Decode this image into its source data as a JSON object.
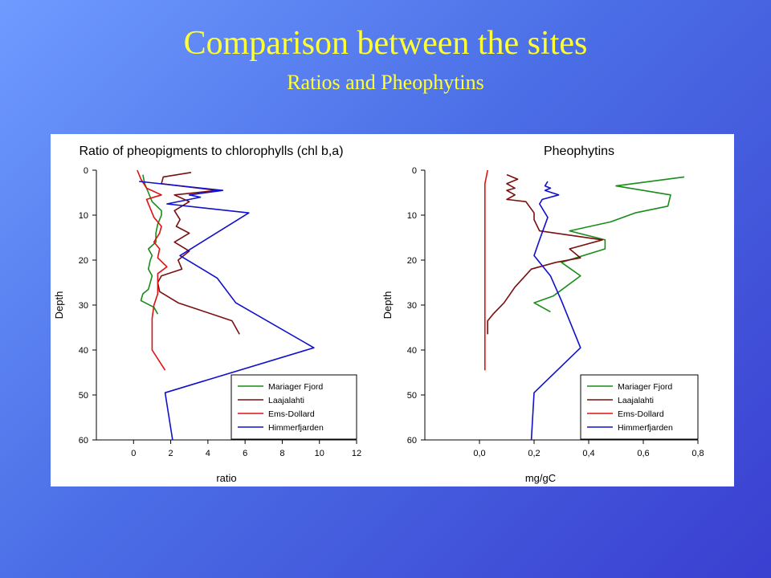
{
  "slide": {
    "title": "Comparison between the sites",
    "subtitle": "Ratios and Pheophytins"
  },
  "chart_data": [
    {
      "type": "line",
      "title": "Ratio of pheopigments to chlorophylls (chl b,a)",
      "xlabel": "ratio",
      "ylabel": "Depth",
      "xlim": [
        -2,
        12
      ],
      "ylim": [
        0,
        60
      ],
      "y_inverted": true,
      "xticks": [
        "0",
        "2",
        "4",
        "6",
        "8",
        "10",
        "12"
      ],
      "yticks": [
        "0",
        "10",
        "20",
        "30",
        "40",
        "50",
        "60"
      ],
      "legend_position": "bottom-right",
      "series": [
        {
          "name": "Mariager Fjord",
          "color": "#1a8c1a",
          "points": [
            [
              0.5,
              1
            ],
            [
              0.6,
              3
            ],
            [
              0.8,
              5
            ],
            [
              1,
              7
            ],
            [
              1.5,
              9
            ],
            [
              1.5,
              10
            ],
            [
              1.3,
              12
            ],
            [
              1.2,
              14
            ],
            [
              1.2,
              16
            ],
            [
              0.8,
              17.5
            ],
            [
              1,
              19
            ],
            [
              0.9,
              20
            ],
            [
              0.8,
              22
            ],
            [
              1,
              23.5
            ],
            [
              0.9,
              25
            ],
            [
              0.8,
              26.5
            ],
            [
              0.5,
              27.5
            ],
            [
              0.4,
              29
            ],
            [
              1.1,
              30.5
            ],
            [
              1.3,
              32
            ]
          ]
        },
        {
          "name": "Laajalahti",
          "color": "#7a0f0f",
          "points": [
            [
              3.1,
              0.5
            ],
            [
              1.6,
              1.5
            ],
            [
              1.5,
              3
            ],
            [
              4.5,
              4.5
            ],
            [
              2.2,
              5.5
            ],
            [
              3,
              7
            ],
            [
              2.2,
              9
            ],
            [
              2.5,
              11
            ],
            [
              2.3,
              12.5
            ],
            [
              3,
              14
            ],
            [
              2.2,
              16
            ],
            [
              3,
              18
            ],
            [
              2.4,
              20
            ],
            [
              2.6,
              22
            ],
            [
              1.5,
              23.5
            ],
            [
              1.3,
              25
            ],
            [
              1.4,
              27
            ],
            [
              2.4,
              29.5
            ],
            [
              5.3,
              33.5
            ],
            [
              5.7,
              36.5
            ]
          ]
        },
        {
          "name": "Ems-Dollard",
          "color": "#e01010",
          "points": [
            [
              0.2,
              0
            ],
            [
              0.4,
              2
            ],
            [
              0.7,
              4
            ],
            [
              1.5,
              5.5
            ],
            [
              0.7,
              6.5
            ],
            [
              0.9,
              8.5
            ],
            [
              1.1,
              10.5
            ],
            [
              1.5,
              12.5
            ],
            [
              1.4,
              14
            ],
            [
              1.1,
              16
            ],
            [
              1.4,
              17.5
            ],
            [
              1.3,
              19.5
            ],
            [
              1.8,
              21.5
            ],
            [
              1.3,
              23
            ],
            [
              1.3,
              24.5
            ],
            [
              1.3,
              27.5
            ],
            [
              1.1,
              30
            ],
            [
              1,
              33
            ],
            [
              1,
              36.5
            ],
            [
              1,
              40
            ],
            [
              1.7,
              44.5
            ]
          ]
        },
        {
          "name": "Himmerfjarden",
          "color": "#1010cc",
          "points": [
            [
              0.3,
              2.5
            ],
            [
              4.8,
              4.5
            ],
            [
              3,
              5.5
            ],
            [
              3.6,
              6
            ],
            [
              1.8,
              7.5
            ],
            [
              6.2,
              9.5
            ],
            [
              2.5,
              19
            ],
            [
              4.5,
              24
            ],
            [
              5.5,
              29.5
            ],
            [
              9.7,
              39.5
            ],
            [
              1.7,
              49.5
            ],
            [
              2.1,
              60
            ]
          ]
        }
      ]
    },
    {
      "type": "line",
      "title": "Pheophytins",
      "xlabel": "mg/gC",
      "ylabel": "Depth",
      "xlim": [
        -0.2,
        0.8
      ],
      "ylim": [
        0,
        60
      ],
      "y_inverted": true,
      "xticks": [
        "0,0",
        "0,2",
        "0,4",
        "0,6",
        "0,8"
      ],
      "yticks": [
        "0",
        "10",
        "20",
        "30",
        "40",
        "50",
        "60"
      ],
      "legend_position": "bottom-right",
      "series": [
        {
          "name": "Mariager Fjord",
          "color": "#1a8c1a",
          "points": [
            [
              0.75,
              1.5
            ],
            [
              0.5,
              3.5
            ],
            [
              0.7,
              5.5
            ],
            [
              0.69,
              8
            ],
            [
              0.57,
              9.5
            ],
            [
              0.48,
              11.5
            ],
            [
              0.33,
              13.5
            ],
            [
              0.46,
              15.5
            ],
            [
              0.46,
              17.5
            ],
            [
              0.3,
              20.5
            ],
            [
              0.37,
              23.5
            ],
            [
              0.27,
              28
            ],
            [
              0.2,
              29.5
            ],
            [
              0.26,
              31.5
            ]
          ]
        },
        {
          "name": "Laajalahti",
          "color": "#7a0f0f",
          "points": [
            [
              0.1,
              1
            ],
            [
              0.14,
              2
            ],
            [
              0.1,
              3
            ],
            [
              0.13,
              4
            ],
            [
              0.1,
              4.5
            ],
            [
              0.13,
              5.5
            ],
            [
              0.1,
              6.5
            ],
            [
              0.17,
              7
            ],
            [
              0.2,
              9.5
            ],
            [
              0.2,
              11
            ],
            [
              0.22,
              13.5
            ],
            [
              0.45,
              15.5
            ],
            [
              0.33,
              17.5
            ],
            [
              0.37,
              19.5
            ],
            [
              0.28,
              20.5
            ],
            [
              0.19,
              22
            ],
            [
              0.16,
              24
            ],
            [
              0.13,
              26
            ],
            [
              0.09,
              29.5
            ],
            [
              0.05,
              32
            ],
            [
              0.03,
              33.5
            ],
            [
              0.03,
              36.5
            ]
          ]
        },
        {
          "name": "Ems-Dollard",
          "color": "#e01010",
          "points": [
            [
              0.03,
              0
            ],
            [
              0.02,
              3
            ],
            [
              0.02,
              5
            ],
            [
              0.02,
              10
            ],
            [
              0.02,
              20
            ],
            [
              0.02,
              30
            ],
            [
              0.02,
              40
            ],
            [
              0.02,
              44.5
            ]
          ]
        },
        {
          "name": "Himmerfjarden",
          "color": "#1010cc",
          "points": [
            [
              0.25,
              2.5
            ],
            [
              0.24,
              3.5
            ],
            [
              0.26,
              4
            ],
            [
              0.24,
              4.5
            ],
            [
              0.29,
              5.5
            ],
            [
              0.23,
              6.5
            ],
            [
              0.22,
              7.5
            ],
            [
              0.25,
              10.5
            ],
            [
              0.22,
              15.5
            ],
            [
              0.2,
              19
            ],
            [
              0.26,
              23.5
            ],
            [
              0.3,
              29
            ],
            [
              0.37,
              39.5
            ],
            [
              0.2,
              49.5
            ],
            [
              0.19,
              60
            ]
          ]
        }
      ]
    }
  ]
}
